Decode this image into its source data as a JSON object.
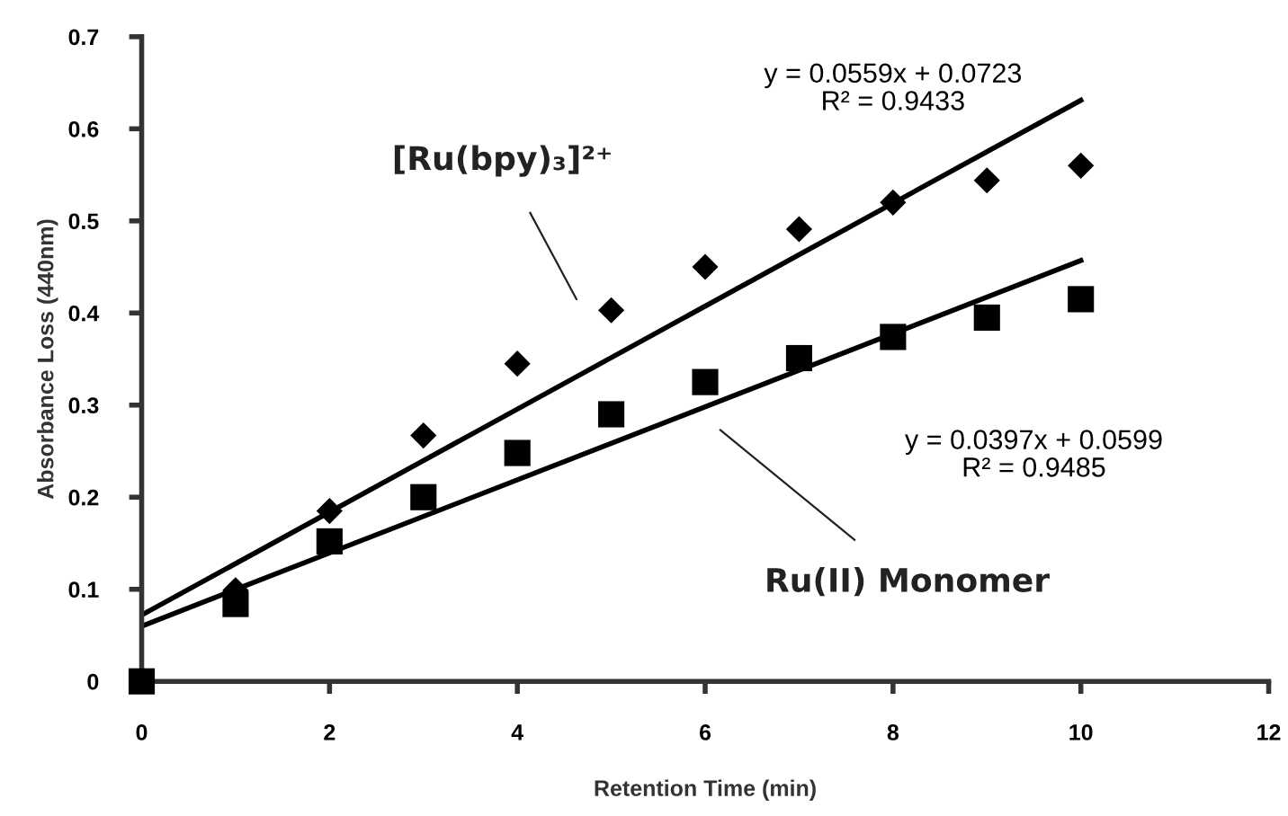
{
  "chart_data": {
    "type": "scatter",
    "xlabel": "Retention Time (min)",
    "ylabel": "Absorbance Loss (440nm)",
    "xlim": [
      0,
      12
    ],
    "xticks": [
      0,
      2,
      4,
      6,
      8,
      10,
      12
    ],
    "ylim": [
      0,
      0.7
    ],
    "yticks": [
      0,
      0.1,
      0.2,
      0.3,
      0.4,
      0.5,
      0.6,
      0.7
    ],
    "grid": false,
    "series": [
      {
        "marker": "diamond",
        "color": "#000000",
        "x": [
          1,
          2,
          3,
          4,
          5,
          6,
          7,
          8,
          9,
          10
        ],
        "values": [
          0.099,
          0.185,
          0.267,
          0.345,
          0.403,
          0.45,
          0.491,
          0.52,
          0.544,
          0.56
        ]
      },
      {
        "marker": "square",
        "color": "#000000",
        "x": [
          0,
          1,
          2,
          3,
          4,
          5,
          6,
          7,
          8,
          9,
          10
        ],
        "values": [
          0,
          0.084,
          0.152,
          0.2,
          0.248,
          0.29,
          0.325,
          0.351,
          0.374,
          0.395,
          0.415
        ]
      },
      {
        "type": "line",
        "color": "#000000",
        "x": [
          0,
          10
        ],
        "values": [
          0.072,
          0.631
        ]
      },
      {
        "type": "line",
        "color": "#000000",
        "x": [
          0,
          10
        ],
        "values": [
          0.06,
          0.457
        ]
      }
    ],
    "annotations": [
      "y = 0.0559x + 0.0723\nR² = 0.9433",
      "y = 0.0397x + 0.0599\nR² = 0.9485",
      "[Ru(bpy)₃]²⁺",
      "Ru(II) Monomer"
    ]
  }
}
